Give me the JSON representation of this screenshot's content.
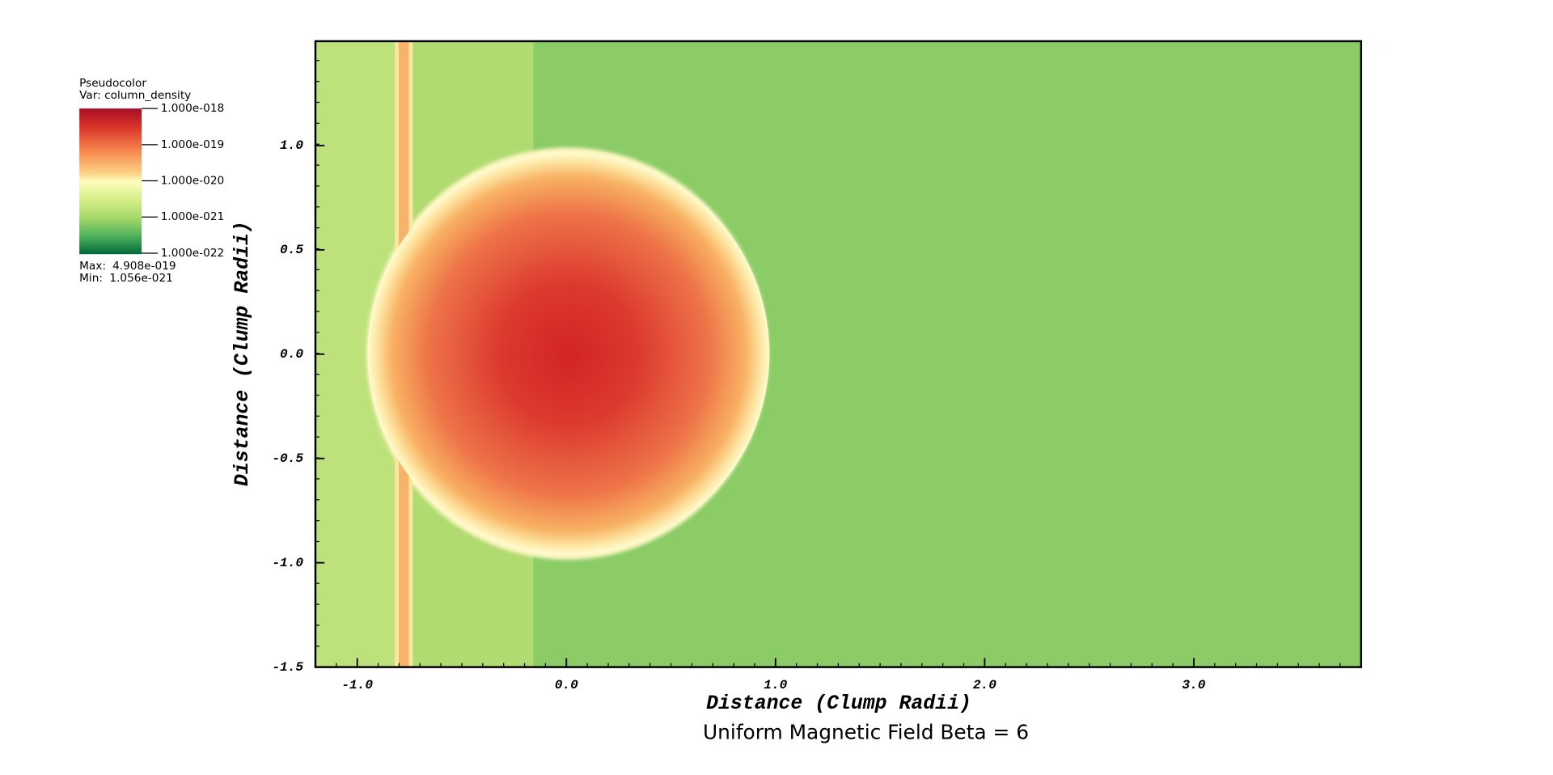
{
  "chart_data": {
    "type": "pseudocolor",
    "title": "Uniform Magnetic Field Beta = 6",
    "xlabel": "Distance (Clump Radii)",
    "ylabel": "Distance (Clump Radii)",
    "xlim": [
      -1.2,
      3.8
    ],
    "ylim": [
      -1.5,
      1.5
    ],
    "xticks": [
      {
        "value": -1,
        "label": "-1.0"
      },
      {
        "value": 0,
        "label": "0.0"
      },
      {
        "value": 1,
        "label": "1.0"
      },
      {
        "value": 2,
        "label": "2.0"
      },
      {
        "value": 3,
        "label": "3.0"
      }
    ],
    "yticks": [
      -1.5,
      {
        "value": -1,
        "label": "-1.0"
      },
      -0.5,
      {
        "value": 0,
        "label": "0.0"
      },
      0.5,
      {
        "value": 1,
        "label": "1.0"
      }
    ],
    "legend": {
      "title": "Pseudocolor",
      "variable": "Var: column_density",
      "log": true,
      "lim": [
        1e-22,
        1e-18
      ],
      "ticks": [
        {
          "value": 1e-18,
          "label": "1.000e-018"
        },
        {
          "value": 1e-19,
          "label": "1.000e-019"
        },
        {
          "value": 1e-20,
          "label": "1.000e-020"
        },
        {
          "value": 1e-21,
          "label": "1.000e-021"
        },
        {
          "value": 1e-22,
          "label": "1.000e-022"
        }
      ],
      "max_label": "Max:",
      "max": {
        "value": 4.908e-19,
        "label": "4.908e-019"
      },
      "min_label": "Min:",
      "min": {
        "value": 1.056e-21,
        "label": "1.056e-021"
      }
    }
  }
}
